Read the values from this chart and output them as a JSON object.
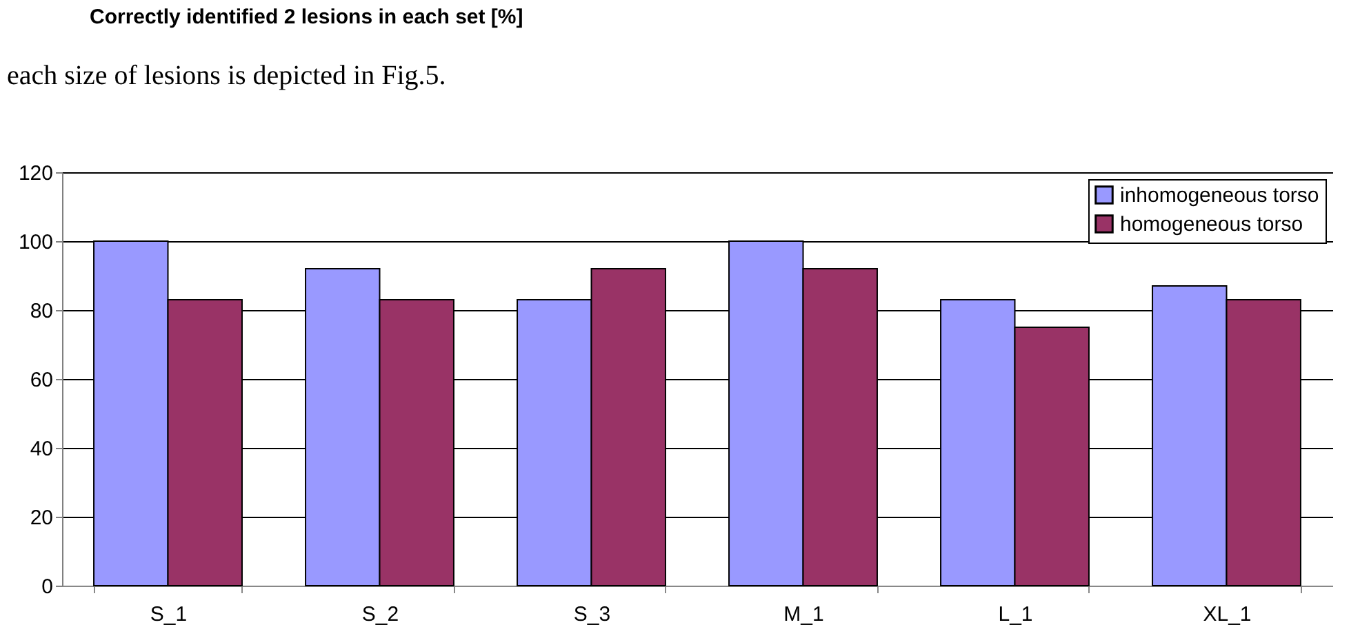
{
  "chart_data": {
    "type": "bar",
    "title": "Correctly identified 2 lesions in each set [%]",
    "categories": [
      "S_1",
      "S_2",
      "S_3",
      "M_1",
      "L_1",
      "XL_1"
    ],
    "series": [
      {
        "name": "inhomogeneous torso",
        "color": "#9999ff",
        "values": [
          100,
          92,
          83,
          100,
          83,
          87
        ]
      },
      {
        "name": "homogeneous torso",
        "color": "#993366",
        "values": [
          83,
          83,
          92,
          92,
          75,
          83
        ]
      }
    ],
    "ylim": [
      0,
      120
    ],
    "yticks": [
      0,
      20,
      40,
      60,
      80,
      100,
      120
    ],
    "grid": "y",
    "legend": "top right",
    "annotations": [
      "each size of lesions is depicted in Fig.5."
    ]
  }
}
